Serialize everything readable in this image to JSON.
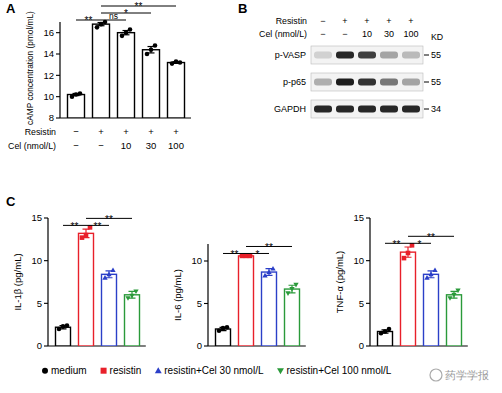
{
  "chart_data": [
    {
      "type": "bar",
      "ylabel": "cAMP concentration (pmol/mL)",
      "categories": [
        null,
        null,
        null,
        null,
        null
      ],
      "values": [
        10.2,
        16.8,
        16.0,
        14.4,
        13.2
      ],
      "errors": [
        0.1,
        0.15,
        0.2,
        0.3,
        0.08
      ],
      "points": [
        [
          10.0,
          10.2,
          10.3
        ],
        [
          16.5,
          16.8,
          17.0
        ],
        [
          15.7,
          16.0,
          16.3
        ],
        [
          14.0,
          14.4,
          14.8
        ],
        [
          13.1,
          13.3,
          13.2
        ]
      ],
      "color": "#000000",
      "marker": "circle",
      "ylim": [
        8,
        17
      ],
      "yticks": [
        8,
        10,
        12,
        14,
        16
      ],
      "condition_table": [
        {
          "label": "Resistin",
          "values": [
            "−",
            "+",
            "+",
            "+",
            "+"
          ]
        },
        {
          "label": "Cel (nmol/L)",
          "values": [
            "−",
            "−",
            "10",
            "30",
            "100"
          ]
        }
      ],
      "significance": [
        {
          "from": 0,
          "to": 1,
          "label": "**"
        },
        {
          "from": 1,
          "to": 2,
          "label": "ns"
        },
        {
          "from": 1,
          "to": 3,
          "label": "*"
        },
        {
          "from": 1,
          "to": 4,
          "label": "**"
        }
      ]
    },
    {
      "type": "bar",
      "ylabel": "IL-1β (pg/mL)",
      "categories": [
        null,
        null,
        null,
        null
      ],
      "values": [
        2.2,
        13.2,
        8.4,
        6.0
      ],
      "errors": [
        0.2,
        0.5,
        0.4,
        0.4
      ],
      "points": [
        [
          2.0,
          2.3,
          2.4
        ],
        [
          12.7,
          13.0,
          13.9
        ],
        [
          8.0,
          8.4,
          8.9
        ],
        [
          5.6,
          5.9,
          6.4
        ]
      ],
      "colors": [
        "#000000",
        "#e8202a",
        "#2b3fc8",
        "#2a9a3a"
      ],
      "markers": [
        "circle",
        "square",
        "triangle",
        "triangle-down"
      ],
      "ylim": [
        0,
        15
      ],
      "yticks": [
        0,
        5,
        10,
        15
      ],
      "significance": [
        {
          "from": 0,
          "to": 1,
          "label": "**"
        },
        {
          "from": 1,
          "to": 2,
          "label": "**"
        },
        {
          "from": 1,
          "to": 3,
          "label": "**"
        }
      ]
    },
    {
      "type": "bar",
      "ylabel": "IL-6 (pg/mL)",
      "categories": [
        null,
        null,
        null,
        null
      ],
      "values": [
        2.0,
        10.6,
        8.7,
        6.7
      ],
      "errors": [
        0.2,
        0.05,
        0.4,
        0.45
      ],
      "points": [
        [
          1.8,
          2.1,
          2.2
        ],
        [
          10.6,
          10.6,
          10.6
        ],
        [
          8.3,
          8.7,
          9.1
        ],
        [
          6.2,
          6.7,
          7.2
        ]
      ],
      "colors": [
        "#000000",
        "#e8202a",
        "#2b3fc8",
        "#2a9a3a"
      ],
      "markers": [
        "circle",
        "square",
        "triangle",
        "triangle-down"
      ],
      "ylim": [
        0,
        12
      ],
      "yticks": [
        0,
        5,
        10
      ],
      "significance": [
        {
          "from": 0,
          "to": 1,
          "label": "**"
        },
        {
          "from": 1,
          "to": 2,
          "label": "*"
        },
        {
          "from": 1,
          "to": 3,
          "label": "**"
        }
      ]
    },
    {
      "type": "bar",
      "ylabel": "TNF-α (pg/mL)",
      "categories": [
        null,
        null,
        null,
        null
      ],
      "values": [
        1.7,
        11.0,
        8.4,
        6.0
      ],
      "errors": [
        0.2,
        0.6,
        0.4,
        0.4
      ],
      "points": [
        [
          1.5,
          1.7,
          2.0
        ],
        [
          10.3,
          10.9,
          11.8
        ],
        [
          8.0,
          8.4,
          8.9
        ],
        [
          5.6,
          6.0,
          6.5
        ]
      ],
      "colors": [
        "#000000",
        "#e8202a",
        "#2b3fc8",
        "#2a9a3a"
      ],
      "markers": [
        "circle",
        "square",
        "triangle",
        "triangle-down"
      ],
      "ylim": [
        0,
        15
      ],
      "yticks": [
        0,
        5,
        10,
        15
      ],
      "significance": [
        {
          "from": 0,
          "to": 1,
          "label": "**"
        },
        {
          "from": 1,
          "to": 2,
          "label": "*"
        },
        {
          "from": 1,
          "to": 3,
          "label": "**"
        }
      ]
    }
  ],
  "legend_entries": [
    {
      "name": "medium",
      "color": "#000000",
      "marker": "circle"
    },
    {
      "name": "resistin",
      "color": "#e8202a",
      "marker": "square"
    },
    {
      "name": "resistin+Cel 30 nmol/L",
      "color": "#2b3fc8",
      "marker": "triangle"
    },
    {
      "name": "resistin+Cel 100 nmol/L",
      "color": "#2a9a3a",
      "marker": "triangle-down"
    }
  ],
  "blot": {
    "condition_table": [
      {
        "label": "Resistin",
        "values": [
          "−",
          "+",
          "+",
          "+",
          "+"
        ]
      },
      {
        "label": "Cel (nmol/L)",
        "values": [
          "−",
          "−",
          "10",
          "30",
          "100"
        ]
      }
    ],
    "marker_header": "KD",
    "bands": [
      {
        "label": "p-VASP",
        "kd": 55,
        "intensity": [
          0.15,
          0.9,
          0.8,
          0.35,
          0.25
        ]
      },
      {
        "label": "p-p65",
        "kd": 55,
        "intensity": [
          0.3,
          0.95,
          0.85,
          0.55,
          0.35
        ]
      },
      {
        "label": "GAPDH",
        "kd": 34,
        "intensity": [
          0.9,
          0.9,
          0.9,
          0.9,
          0.9
        ]
      }
    ]
  },
  "panel_labels": [
    "A",
    "B",
    "C"
  ],
  "watermark": "药学学报"
}
